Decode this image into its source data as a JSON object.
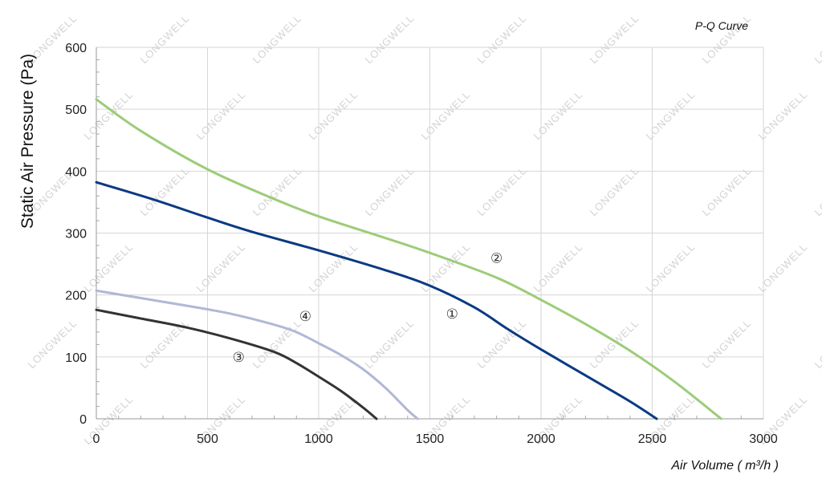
{
  "chart_data": {
    "type": "line",
    "title": "P-Q Curve",
    "xlabel": "Air Volume ( m³/h )",
    "ylabel": "Static Air Pressure  (Pa)",
    "xlim": [
      0,
      3000
    ],
    "ylim": [
      0,
      600
    ],
    "x_ticks": [
      0,
      500,
      1000,
      1500,
      2000,
      2500,
      3000
    ],
    "y_ticks": [
      0,
      100,
      200,
      300,
      400,
      500,
      600
    ],
    "grid": true,
    "watermark": "LONGWELL",
    "series": [
      {
        "name": "①",
        "color": "#0b3a82",
        "label_at": [
          1600,
          162
        ],
        "points": [
          [
            0,
            382
          ],
          [
            250,
            355
          ],
          [
            500,
            325
          ],
          [
            700,
            302
          ],
          [
            1000,
            272
          ],
          [
            1300,
            240
          ],
          [
            1500,
            215
          ],
          [
            1700,
            180
          ],
          [
            1850,
            145
          ],
          [
            2000,
            112
          ],
          [
            2200,
            70
          ],
          [
            2400,
            28
          ],
          [
            2520,
            0
          ]
        ]
      },
      {
        "name": "②",
        "color": "#9ccc78",
        "label_at": [
          1800,
          252
        ],
        "points": [
          [
            0,
            516
          ],
          [
            200,
            465
          ],
          [
            500,
            403
          ],
          [
            800,
            355
          ],
          [
            1000,
            327
          ],
          [
            1300,
            292
          ],
          [
            1500,
            268
          ],
          [
            1800,
            228
          ],
          [
            2000,
            192
          ],
          [
            2200,
            153
          ],
          [
            2400,
            110
          ],
          [
            2600,
            60
          ],
          [
            2810,
            0
          ]
        ]
      },
      {
        "name": "③",
        "color": "#333333",
        "label_at": [
          640,
          92
        ],
        "points": [
          [
            0,
            176
          ],
          [
            200,
            162
          ],
          [
            400,
            148
          ],
          [
            600,
            130
          ],
          [
            800,
            108
          ],
          [
            900,
            90
          ],
          [
            1000,
            68
          ],
          [
            1100,
            45
          ],
          [
            1200,
            18
          ],
          [
            1260,
            0
          ]
        ]
      },
      {
        "name": "④",
        "color": "#b0b8d6",
        "label_at": [
          940,
          158
        ],
        "points": [
          [
            0,
            207
          ],
          [
            200,
            195
          ],
          [
            400,
            183
          ],
          [
            600,
            170
          ],
          [
            800,
            152
          ],
          [
            900,
            140
          ],
          [
            1000,
            122
          ],
          [
            1100,
            103
          ],
          [
            1200,
            80
          ],
          [
            1300,
            50
          ],
          [
            1400,
            14
          ],
          [
            1445,
            0
          ]
        ]
      }
    ]
  }
}
